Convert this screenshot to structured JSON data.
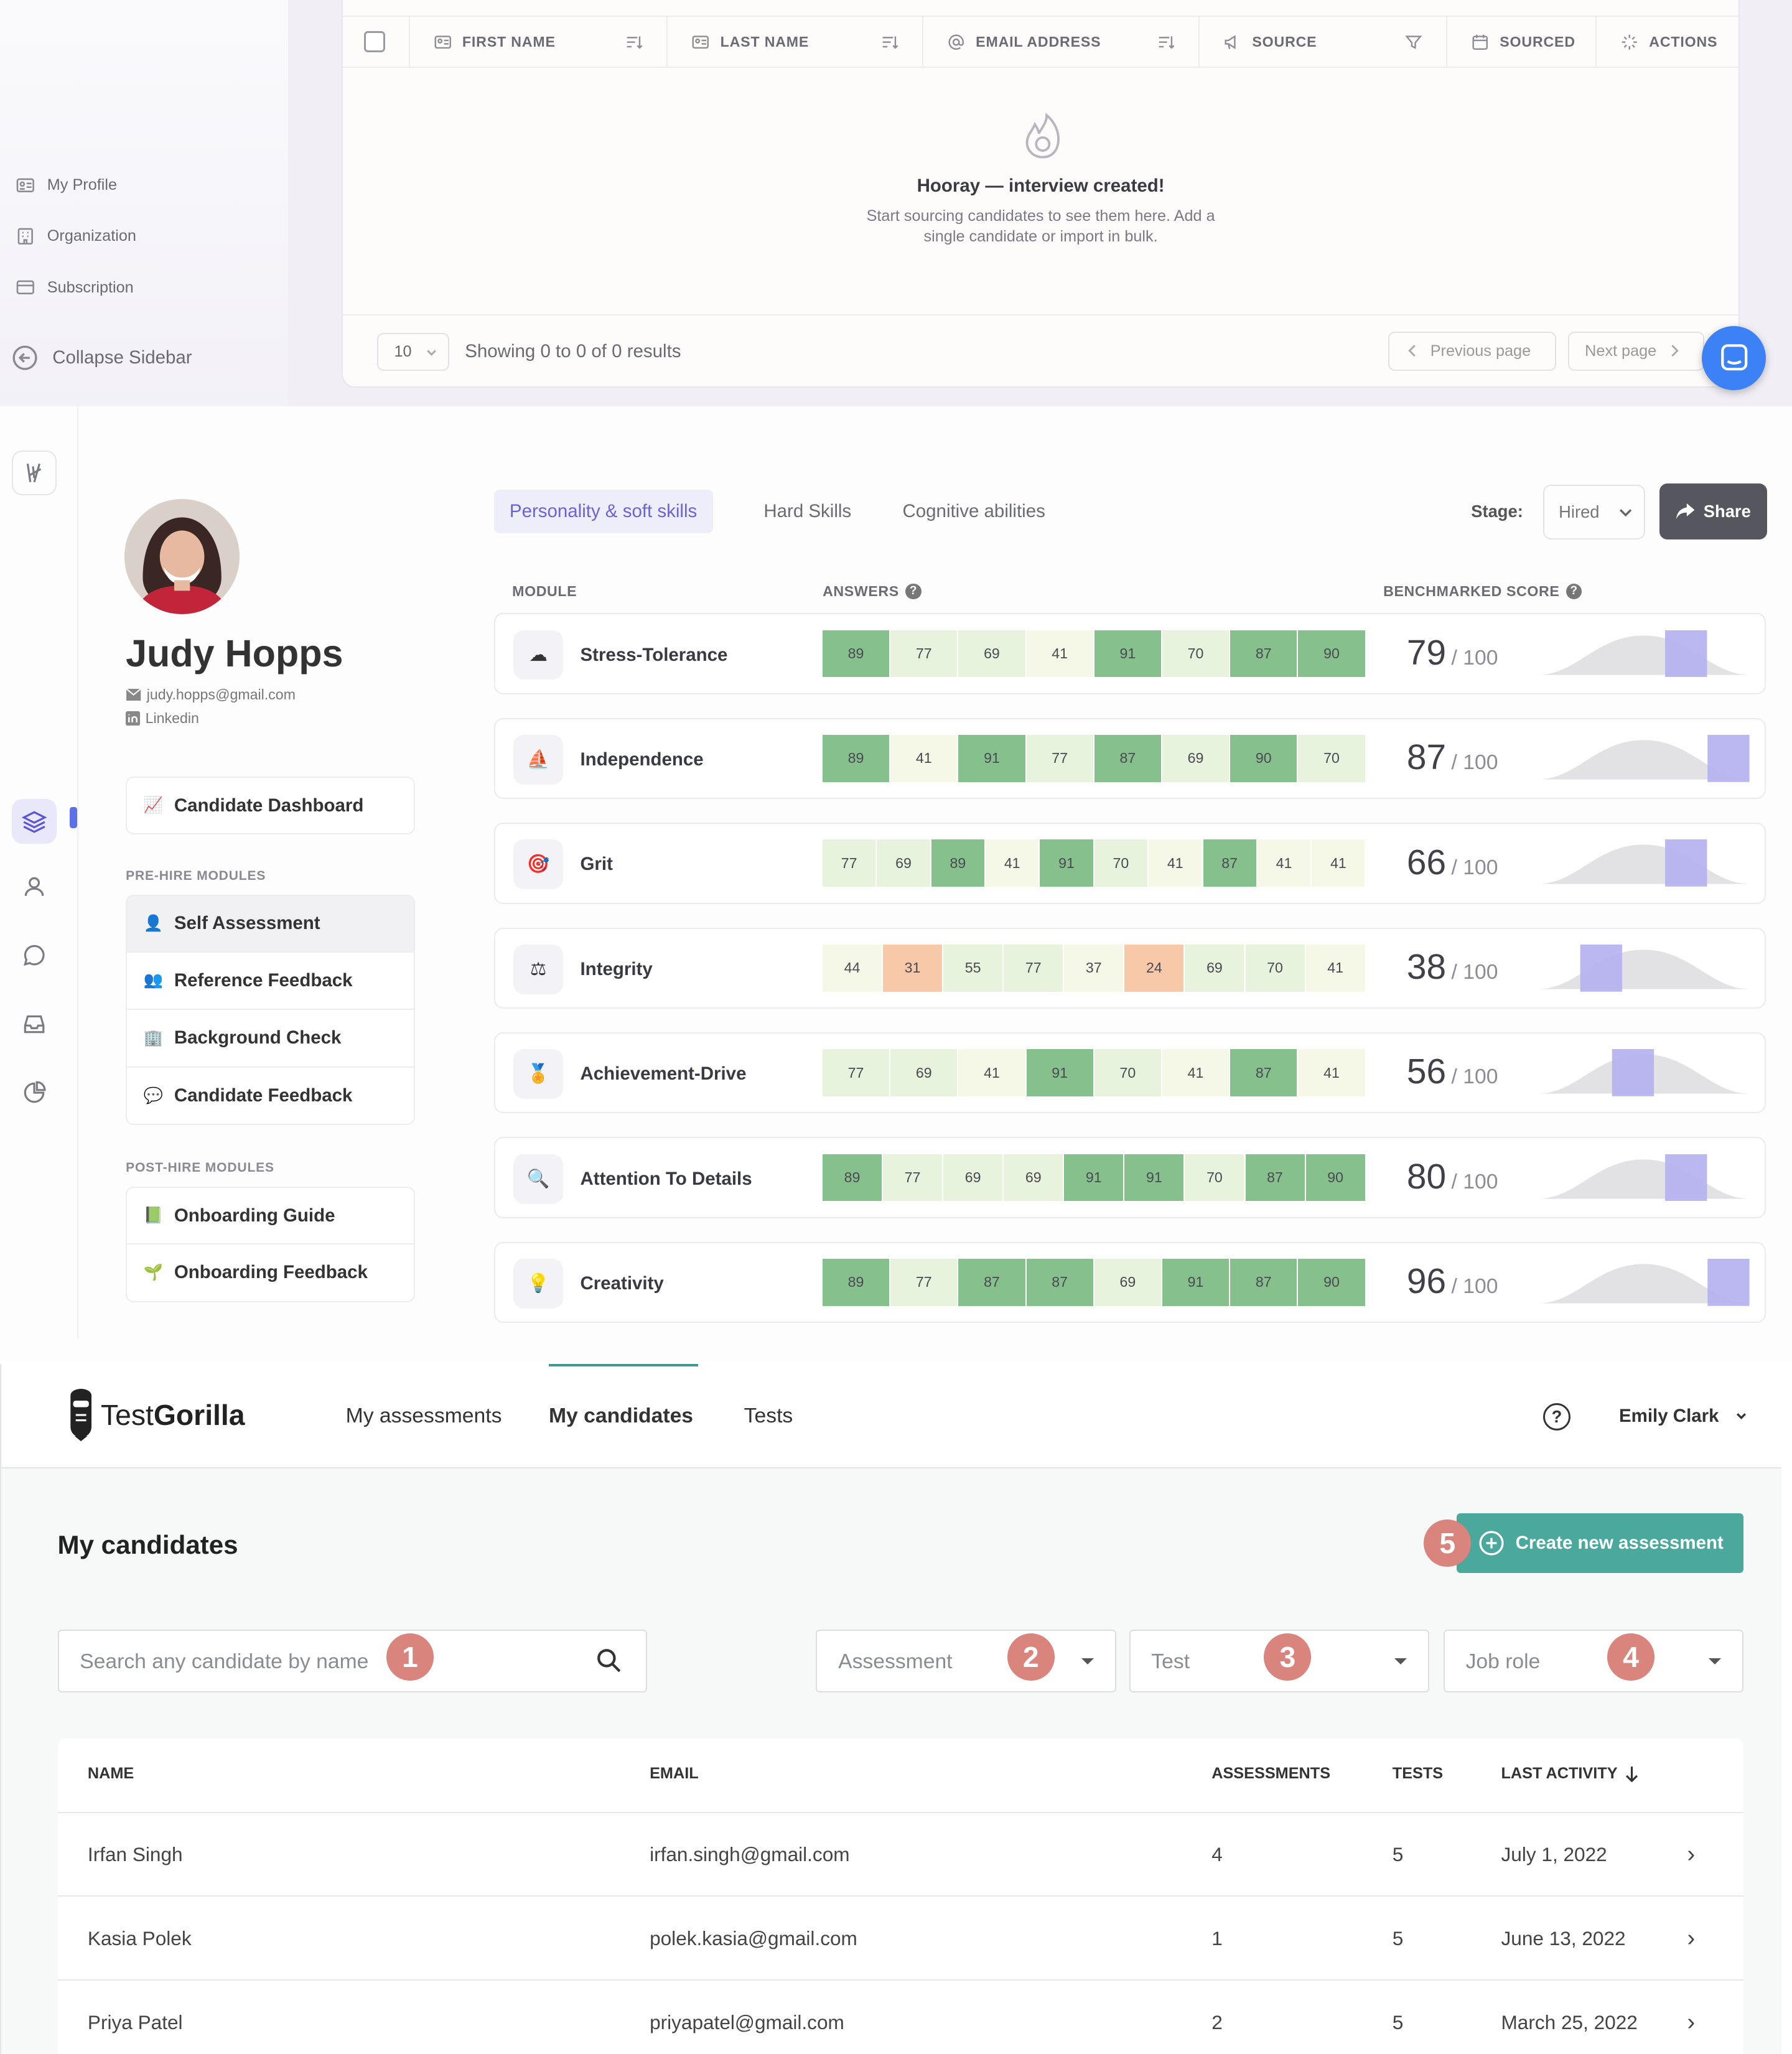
{
  "panel_a": {
    "sidebar": [
      {
        "label": "My Profile",
        "icon": "id-card-icon"
      },
      {
        "label": "Organization",
        "icon": "building-icon"
      },
      {
        "label": "Subscription",
        "icon": "card-icon"
      }
    ],
    "collapse_label": "Collapse Sidebar",
    "columns": [
      "FIRST NAME",
      "LAST NAME",
      "EMAIL ADDRESS",
      "SOURCE",
      "SOURCED",
      "ACTIONS"
    ],
    "empty_title": "Hooray — interview created!",
    "empty_line1": "Start sourcing candidates to see them here. Add a",
    "empty_line2": "single candidate or import in bulk.",
    "per_page": "10",
    "showing": "Showing 0 to 0 of 0 results",
    "prev_label": "Previous page",
    "next_label": "Next page"
  },
  "panel_b": {
    "candidate": {
      "name": "Judy Hopps",
      "email": "judy.hopps@gmail.com",
      "linkedin": "Linkedin"
    },
    "dashboard_label": "Candidate Dashboard",
    "pre_hire_heading": "PRE-HIRE MODULES",
    "pre_hire": [
      "Self Assessment",
      "Reference Feedback",
      "Background Check",
      "Candidate Feedback"
    ],
    "post_hire_heading": "POST-HIRE MODULES",
    "post_hire": [
      "Onboarding Guide",
      "Onboarding Feedback"
    ],
    "tabs": [
      "Personality & soft skills",
      "Hard Skills",
      "Cognitive abilities"
    ],
    "stage_label": "Stage:",
    "stage_value": "Hired",
    "share_label": "Share",
    "col_module": "MODULE",
    "col_answers": "ANSWERS",
    "col_score": "BENCHMARKED SCORE",
    "score_denominator": "/ 100",
    "colors": {
      "high": "#86c18d",
      "mid": "#e8f3dd",
      "low": "#f6f8e7",
      "warn": "#f7c9a8",
      "bench": "#b4b0ef"
    },
    "modules": [
      {
        "name": "Stress-Tolerance",
        "icon": "cloud-icon",
        "answers": [
          89,
          77,
          69,
          41,
          91,
          70,
          87,
          90
        ],
        "score": 79,
        "bench_pos": 0.7
      },
      {
        "name": "Independence",
        "icon": "sailboat-icon",
        "answers": [
          89,
          41,
          91,
          77,
          87,
          69,
          90,
          70
        ],
        "score": 87,
        "bench_pos": 0.9
      },
      {
        "name": "Grit",
        "icon": "target-icon",
        "answers": [
          77,
          69,
          89,
          41,
          91,
          70,
          41,
          87,
          41,
          41
        ],
        "score": 66,
        "bench_pos": 0.7
      },
      {
        "name": "Integrity",
        "icon": "scales-icon",
        "answers": [
          44,
          31,
          55,
          77,
          37,
          24,
          69,
          70,
          41
        ],
        "score": 38,
        "bench_pos": 0.3
      },
      {
        "name": "Achievement-Drive",
        "icon": "medal-icon",
        "answers": [
          77,
          69,
          41,
          91,
          70,
          41,
          87,
          41
        ],
        "score": 56,
        "bench_pos": 0.45
      },
      {
        "name": "Attention To Details",
        "icon": "magnifier-icon",
        "answers": [
          89,
          77,
          69,
          69,
          91,
          91,
          70,
          87,
          90
        ],
        "score": 80,
        "bench_pos": 0.7
      },
      {
        "name": "Creativity",
        "icon": "bulb-icon",
        "answers": [
          89,
          77,
          87,
          87,
          69,
          91,
          87,
          90
        ],
        "score": 96,
        "bench_pos": 0.9
      }
    ]
  },
  "panel_c": {
    "logo_plain": "Test",
    "logo_bold": "Gorilla",
    "nav": [
      "My assessments",
      "My candidates",
      "Tests"
    ],
    "user": "Emily Clark",
    "page_title": "My candidates",
    "create_label": "Create new assessment",
    "search_placeholder": "Search any candidate by name",
    "filters": [
      "Assessment",
      "Test",
      "Job role"
    ],
    "badges": [
      "1",
      "2",
      "3",
      "4",
      "5"
    ],
    "headers": [
      "NAME",
      "EMAIL",
      "ASSESSMENTS",
      "TESTS",
      "LAST ACTIVITY"
    ],
    "rows": [
      {
        "name": "Irfan Singh",
        "email": "irfan.singh@gmail.com",
        "assessments": "4",
        "tests": "5",
        "last": "July 1, 2022"
      },
      {
        "name": "Kasia Polek",
        "email": "polek.kasia@gmail.com",
        "assessments": "1",
        "tests": "5",
        "last": "June 13, 2022"
      },
      {
        "name": "Priya Patel",
        "email": "priyapatel@gmail.com",
        "assessments": "2",
        "tests": "5",
        "last": "March 25, 2022"
      }
    ]
  }
}
